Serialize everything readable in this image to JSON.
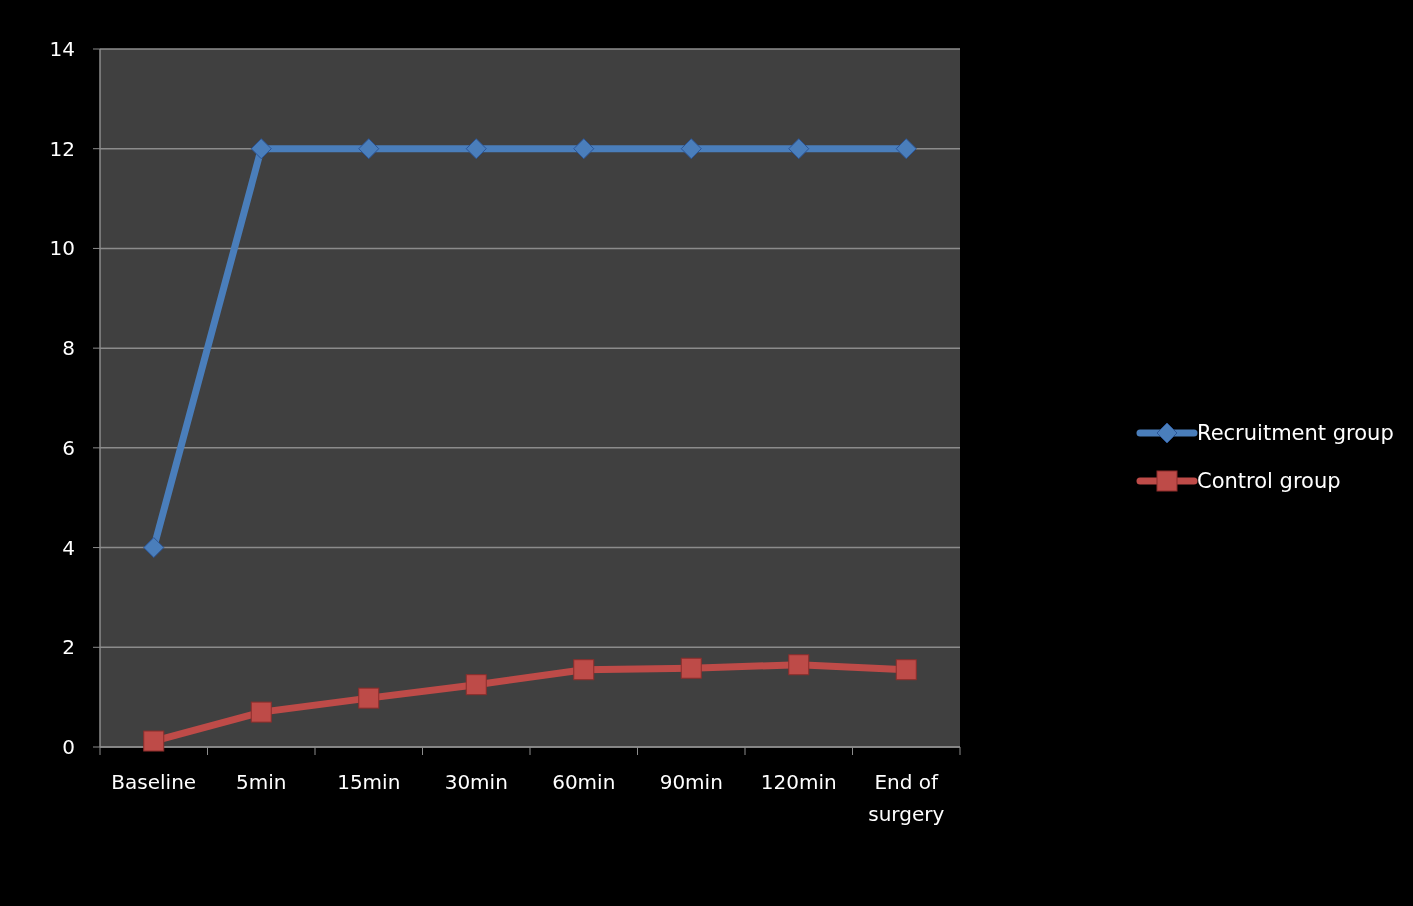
{
  "chart_data": {
    "type": "line",
    "categories": [
      "Baseline",
      "5min",
      "15min",
      "30min",
      "60min",
      "90min",
      "120min",
      "End of surgery"
    ],
    "series": [
      {
        "name": "Recruitment group",
        "color": "#4a7ebb",
        "marker": "diamond",
        "values": [
          4,
          12,
          12,
          12,
          12,
          12,
          12,
          12
        ]
      },
      {
        "name": "Control group",
        "color": "#be4b48",
        "marker": "square",
        "values": [
          0.12,
          0.7,
          0.98,
          1.25,
          1.55,
          1.58,
          1.65,
          1.55
        ]
      }
    ],
    "ylim": [
      0,
      14
    ],
    "yticks": [
      0,
      2,
      4,
      6,
      8,
      10,
      12,
      14
    ],
    "grid": "y",
    "legend": "right"
  }
}
